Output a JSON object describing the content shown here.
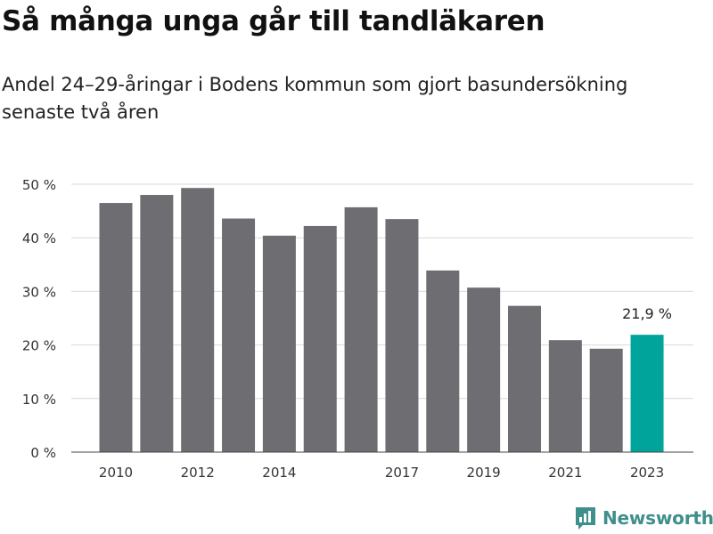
{
  "title": "Så många unga går till tandläkaren",
  "subtitle": "Andel 24–29-åringar i Bodens kommun som gjort basundersökning senaste två åren",
  "brand": "Newsworthy",
  "colors": {
    "bar": "#6e6d72",
    "highlight": "#00a49a",
    "grid": "#d9d9d9",
    "brand": "#3f8f8a"
  },
  "chart_data": {
    "type": "bar",
    "title": "Så många unga går till tandläkaren",
    "subtitle": "Andel 24–29-åringar i Bodens kommun som gjort basundersökning senaste två åren",
    "categories": [
      "2010",
      "2011",
      "2012",
      "2013",
      "2014",
      "2015",
      "2016",
      "2017",
      "2018",
      "2019",
      "2020",
      "2021",
      "2022",
      "2023"
    ],
    "values": [
      46.5,
      48.0,
      49.3,
      43.6,
      40.4,
      42.2,
      45.7,
      43.5,
      33.9,
      30.7,
      27.3,
      20.9,
      19.3,
      21.9
    ],
    "x_tick_labels": [
      "2010",
      "2012",
      "2014",
      "2017",
      "2019",
      "2021",
      "2023"
    ],
    "y_ticks": [
      0,
      10,
      20,
      30,
      40,
      50
    ],
    "y_tick_labels": [
      "0 %",
      "10 %",
      "20 %",
      "30 %",
      "40 %",
      "50 %"
    ],
    "ylim": [
      0,
      50
    ],
    "grid": true,
    "highlight_index": 13,
    "annotation": {
      "category": "2023",
      "text": "21,9 %"
    }
  }
}
